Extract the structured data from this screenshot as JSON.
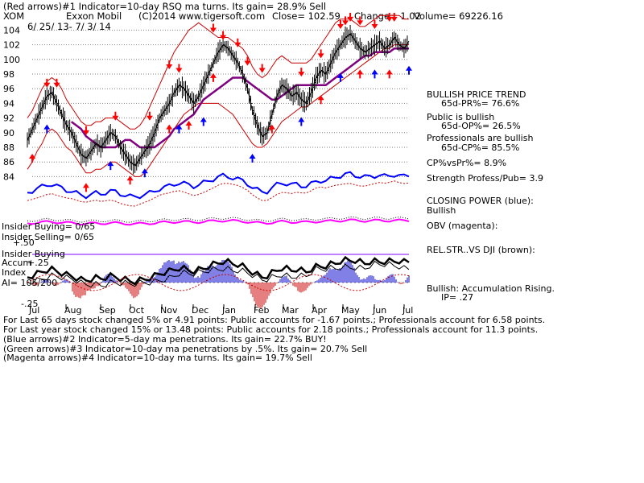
{
  "header": {
    "line1": "(Red arrows)#1 Indicator=10-day RSQ ma turns. Its gain= 28.9% Sell",
    "ticker": "XOM",
    "company": "Exxon Mobil",
    "copyright": "(C)2014 www.tigersoft.com",
    "close": "Close=  102.59",
    "change": "Change= 1.02",
    "volume": "Volume= 69226.16",
    "date_range": "6/ 25/ 13- 7/ 3/ 14"
  },
  "right_panel": {
    "bullish_trend": "BULLISH PRICE TREND",
    "pr": "65d-PR%= 76.6%",
    "public": "Public is bullish",
    "op": "65d-OP%= 26.5%",
    "professionals": "Professionals are bullish",
    "cp": "65d-CP%= 85.5%",
    "cpvspr": "CP%vsPr%=  8.9%",
    "strength": "Strength Profess/Pub= 3.9",
    "closing_power": "CLOSING POWER (blue):",
    "closing_power_state": "Bullish",
    "obv": "OBV (magenta):",
    "relstr": "REL.STR..VS DJI (brown):",
    "accum": "Bullish: Accumulation Rising.",
    "ip": "IP=  .27"
  },
  "lower_left": {
    "insider_buying": "Insider Buying= 0/65",
    "insider_selling": "Insider Selling= 0/65",
    "insider_buying2": "Insider Buying",
    "accum": "Accum",
    "index": "Index",
    "ai": "AI= 105/200",
    "plus50": "+.50",
    "plus25": "+.25",
    "minus25": "-.25"
  },
  "footer": {
    "line1": "For Last 65 days stock changed  5% or  4.91 points:  Public accounts for -1.67 points.;  Professionals account for  6.58 points.",
    "line2": "For Last year stock changed  15% or  13.48 points:  Public accounts for  2.18 points.;  Professionals account for  11.3 points.",
    "line3": "(Blue arrows)#2 Indicator=5-day ma penetrations. Its gain= 22.7% BUY!",
    "line4": "(Green arrows)#3 Indicator=10-day ma penetrations by .5%. Its gain= 20.7% Sell",
    "line5": "(Magenta arrows)#4 Indicator=10-day ma turns. Its gain= 19.7% Sell"
  },
  "colors": {
    "price": "#000000",
    "band": "#cc0000",
    "ma": "#800080",
    "closing_power": "#0000ff",
    "obv": "#ff00ff",
    "grid": "#808080",
    "accum_pos": "#0000cc",
    "accum_neg": "#cc0000",
    "sell_arrow": "#ff0000",
    "buy_arrow": "#0000ff"
  },
  "chart_data": {
    "type": "line",
    "title": "XOM Exxon Mobil",
    "ylim": [
      83,
      105
    ],
    "y_ticks": [
      84,
      86,
      88,
      90,
      92,
      94,
      96,
      98,
      100,
      102,
      104
    ],
    "months": [
      "Jul",
      "Aug",
      "Sep",
      "Oct",
      "Nov",
      "Dec",
      "Jan",
      "Feb",
      "Mar",
      "Apr",
      "May",
      "Jun",
      "Jul"
    ],
    "price": [
      89,
      90.5,
      92,
      93.5,
      95,
      95.5,
      94,
      92.5,
      91,
      90,
      88.5,
      87,
      86.5,
      87.5,
      88.5,
      88,
      89,
      90,
      89.5,
      88,
      87,
      86,
      85.5,
      86.5,
      87.5,
      88.5,
      90,
      92,
      93,
      94,
      95.5,
      96.5,
      96,
      95,
      94,
      95,
      96.5,
      98,
      99.5,
      101,
      102,
      101.5,
      100.5,
      99.5,
      98,
      96,
      93,
      91,
      89.5,
      90,
      92.5,
      95,
      96.5,
      96,
      95,
      95.5,
      94.5,
      94,
      95.5,
      97.5,
      98.5,
      98,
      99.5,
      101,
      102,
      103,
      103.5,
      102.5,
      101.5,
      101,
      101.5,
      102,
      102.5,
      101.5,
      102,
      103,
      102,
      101.5,
      102.5
    ],
    "ma": [
      null,
      null,
      null,
      null,
      null,
      null,
      null,
      null,
      null,
      91.5,
      91,
      90.5,
      89.5,
      89,
      88.5,
      88,
      88,
      88,
      88,
      88.5,
      89,
      89,
      88.5,
      88,
      88,
      88,
      88,
      88.5,
      89,
      89.5,
      90.5,
      91,
      91.5,
      92,
      92.5,
      93.5,
      94.5,
      95,
      95.5,
      96,
      96.5,
      97,
      97.5,
      97.5,
      97.5,
      97,
      96.5,
      96,
      95.5,
      95,
      94.5,
      94.5,
      95,
      95.5,
      96,
      96.5,
      96.5,
      96.5,
      96.5,
      96.5,
      96.5,
      96.5,
      97,
      97.5,
      98,
      98.5,
      99,
      99.5,
      100,
      100.5,
      100.5,
      101,
      101,
      101,
      101,
      101.5,
      101.5,
      101.5,
      101.5
    ],
    "band_upper": [
      92,
      93,
      94.5,
      96,
      97,
      97.5,
      97,
      96,
      94.5,
      93.5,
      92.5,
      91.5,
      91,
      91,
      91.5,
      91.5,
      92,
      92,
      92,
      91.5,
      91,
      90.5,
      90.5,
      91,
      92,
      93.5,
      95,
      96.5,
      98,
      99.5,
      101,
      102,
      103,
      104,
      104.5,
      105,
      104.5,
      104,
      103.5,
      103,
      103,
      103,
      102.5,
      102,
      101.5,
      100.5,
      99,
      98,
      97.5,
      98,
      99,
      100,
      100.5,
      100,
      99.5,
      99.5,
      99.5,
      99.5,
      100,
      101,
      102,
      103,
      104,
      105,
      105.5,
      105.5,
      105.5,
      105,
      104.5,
      104.5,
      105,
      105.5,
      106,
      106,
      106,
      106,
      106,
      105.5,
      105.5
    ],
    "band_lower": [
      85,
      86,
      87.5,
      88.5,
      90,
      90.5,
      90,
      89,
      88,
      87.5,
      86.5,
      85.5,
      84.5,
      84.5,
      85,
      85,
      85.5,
      86,
      86,
      85.5,
      85,
      84.5,
      84,
      84,
      84.5,
      85.5,
      86.5,
      87.5,
      88.5,
      89.5,
      90.5,
      91.5,
      92.5,
      93,
      93.5,
      94,
      94,
      94,
      94,
      94,
      93.5,
      93,
      92.5,
      91.5,
      90.5,
      89.5,
      88.5,
      88,
      88,
      88.5,
      89.5,
      90.5,
      91.5,
      92,
      92.5,
      93,
      93.5,
      93.5,
      94,
      94.5,
      95,
      95.5,
      96,
      96.5,
      97,
      97.5,
      98,
      98.5,
      99,
      99.5,
      100,
      100.5,
      101,
      101.5,
      101.5,
      102,
      102,
      102,
      102
    ]
  }
}
